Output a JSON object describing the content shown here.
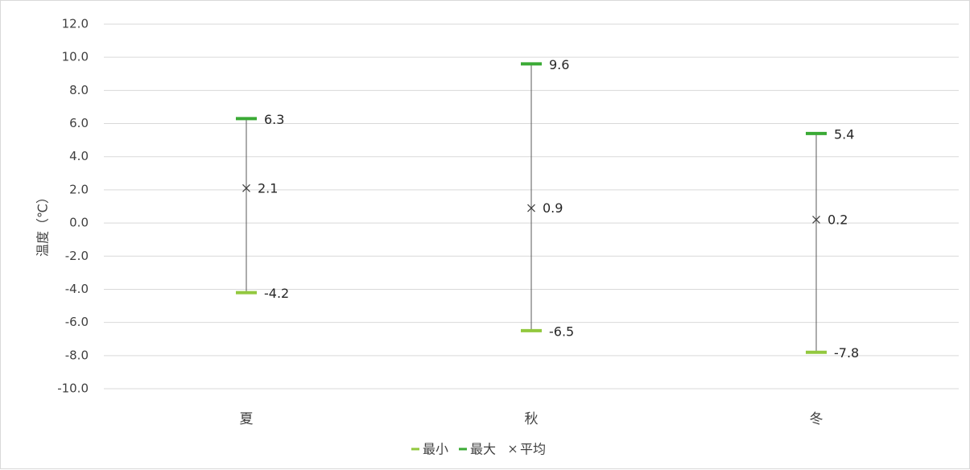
{
  "chart_data": {
    "type": "range",
    "title": "",
    "ylabel": "温度（℃）",
    "ylim": [
      -10.0,
      12.0
    ],
    "yticks": [
      "12.0",
      "10.0",
      "8.0",
      "6.0",
      "4.0",
      "2.0",
      "0.0",
      "-2.0",
      "-4.0",
      "-6.0",
      "-8.0",
      "-10.0"
    ],
    "yticks_values": [
      12,
      10,
      8,
      6,
      4,
      2,
      0,
      -2,
      -4,
      -6,
      -8,
      -10
    ],
    "categories": [
      "夏",
      "秋",
      "冬"
    ],
    "series": [
      {
        "name": "最小",
        "values": [
          -4.2,
          -6.5,
          -7.8
        ],
        "labels": [
          "-4.2",
          "-6.5",
          "-7.8"
        ],
        "color": "#92c83e"
      },
      {
        "name": "最大",
        "values": [
          6.3,
          9.6,
          5.4
        ],
        "labels": [
          "6.3",
          "9.6",
          "5.4"
        ],
        "color": "#3aaa35"
      },
      {
        "name": "平均",
        "values": [
          2.1,
          0.9,
          0.2
        ],
        "labels": [
          "2.1",
          "0.9",
          "0.2"
        ],
        "color": "#404040"
      }
    ],
    "grid": true,
    "legend_position": "bottom"
  },
  "legend": {
    "items": [
      {
        "symbol": "–",
        "label": "最小",
        "color": "#92c83e"
      },
      {
        "symbol": "–",
        "label": "最大",
        "color": "#3aaa35"
      },
      {
        "symbol": "×",
        "label": "平均",
        "color": "#404040"
      }
    ]
  }
}
